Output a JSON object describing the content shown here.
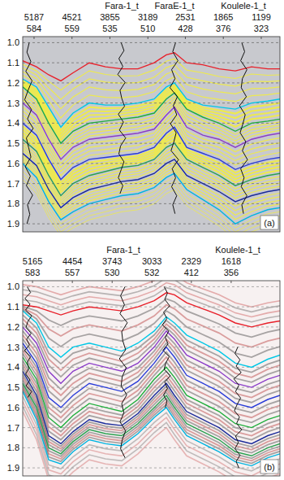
{
  "chart_data": [
    {
      "type": "line",
      "color": "#c8c9ce",
      "grid": true,
      "panel_label": "(a)",
      "xlim": [
        5386,
        871
      ],
      "xticks": [
        5187,
        4521,
        3855,
        3189,
        2531,
        1865,
        1199
      ],
      "cdp_labels": [
        584,
        559,
        535,
        510,
        428,
        376,
        323
      ],
      "ylim": [
        0.97,
        1.94
      ],
      "yticks": [
        {
          "value": 1,
          "label": "1.0"
        },
        1.1,
        1.2,
        1.3,
        1.4,
        1.5,
        1.6,
        1.7,
        1.8,
        1.9
      ],
      "x": [
        5386,
        5144,
        4930,
        4716,
        4503,
        4218,
        3933,
        3648,
        3363,
        3078,
        2865,
        2722,
        2508,
        2224,
        1939,
        1654,
        1369,
        1084,
        871
      ],
      "series": [
        {
          "color": "#e8202a",
          "values": [
            1.09,
            1.12,
            1.16,
            1.19,
            1.15,
            1.1,
            1.12,
            1.13,
            1.13,
            1.1,
            1.06,
            1.05,
            1.1,
            1.11,
            1.13,
            1.14,
            1.12,
            1.13,
            1.13
          ]
        },
        {
          "color": "#00c8e6",
          "values": [
            1.18,
            1.22,
            1.32,
            1.42,
            1.35,
            1.3,
            1.31,
            1.31,
            1.3,
            1.28,
            1.22,
            1.2,
            1.28,
            1.31,
            1.32,
            1.33,
            1.3,
            1.29,
            1.28
          ]
        },
        {
          "color": "#1fae3c",
          "values": [
            1.22,
            1.28,
            1.4,
            1.5,
            1.44,
            1.4,
            1.39,
            1.38,
            1.37,
            1.35,
            1.28,
            1.25,
            1.33,
            1.37,
            1.4,
            1.44,
            1.4,
            1.39,
            1.38
          ]
        },
        {
          "color": "#8a3cc8",
          "values": [
            1.3,
            1.36,
            1.48,
            1.58,
            1.52,
            1.48,
            1.47,
            1.46,
            1.45,
            1.43,
            1.36,
            1.32,
            1.42,
            1.46,
            1.48,
            1.52,
            1.48,
            1.46,
            1.45
          ]
        },
        {
          "color": "#2a3cd8",
          "values": [
            1.4,
            1.46,
            1.58,
            1.68,
            1.62,
            1.58,
            1.57,
            1.56,
            1.55,
            1.52,
            1.45,
            1.42,
            1.52,
            1.55,
            1.58,
            1.63,
            1.6,
            1.58,
            1.57
          ]
        },
        {
          "color": "#2aa050",
          "values": [
            1.48,
            1.54,
            1.66,
            1.76,
            1.7,
            1.66,
            1.64,
            1.62,
            1.61,
            1.58,
            1.52,
            1.5,
            1.58,
            1.62,
            1.66,
            1.71,
            1.68,
            1.66,
            1.65
          ]
        },
        {
          "color": "#1a2a9a",
          "values": [
            1.55,
            1.61,
            1.73,
            1.82,
            1.77,
            1.73,
            1.71,
            1.69,
            1.68,
            1.65,
            1.6,
            1.58,
            1.66,
            1.7,
            1.74,
            1.79,
            1.76,
            1.74,
            1.73
          ]
        },
        {
          "color": "#00b4e0",
          "values": [
            1.6,
            1.67,
            1.79,
            1.88,
            1.84,
            1.8,
            1.78,
            1.76,
            1.75,
            1.72,
            1.67,
            1.65,
            1.73,
            1.78,
            1.83,
            1.9,
            1.86,
            1.83,
            1.82
          ]
        }
      ],
      "wells": [
        {
          "name": null,
          "x": 5272,
          "top": 1.0,
          "bottom": 1.9,
          "log": [
            0,
            40,
            -30,
            60,
            -50,
            20,
            80,
            -40,
            30,
            -70,
            50,
            10,
            -30,
            70,
            -20,
            50,
            -60,
            30,
            -10,
            40
          ]
        },
        {
          "name": "Fara-1_t",
          "x": 3648,
          "top": 1.0,
          "bottom": 1.75,
          "log": [
            10,
            -40,
            50,
            -20,
            70,
            -60,
            30,
            0,
            -50,
            60,
            -30,
            40,
            -70,
            20,
            50,
            -40,
            10,
            60,
            -20,
            30
          ]
        },
        {
          "name": "FaraE-1_t",
          "x": 2722,
          "top": 1.0,
          "bottom": 1.85,
          "log": [
            -20,
            30,
            -60,
            50,
            -10,
            80,
            -50,
            20,
            -40,
            70,
            -30,
            10,
            60,
            -70,
            40,
            -20,
            50,
            -40,
            30,
            -10
          ]
        },
        {
          "name": "Koulele-1_t",
          "x": 1511,
          "top": 1.0,
          "bottom": 1.85,
          "log": [
            30,
            -20,
            50,
            -60,
            20,
            40,
            -50,
            70,
            -30,
            10,
            60,
            -40,
            20,
            -70,
            50,
            -10,
            40,
            -60,
            30,
            0
          ]
        }
      ]
    },
    {
      "type": "seismic",
      "color": "#f7f1f1",
      "grid": true,
      "panel_label": "(b)",
      "xlim": [
        5340,
        747
      ],
      "xticks": [
        5165,
        4454,
        3743,
        3033,
        2329,
        1618
      ],
      "cdp_labels": [
        583,
        557,
        530,
        532,
        412,
        356
      ],
      "ylim": [
        0.97,
        1.94
      ],
      "yticks": [
        {
          "value": 1,
          "label": "1.0"
        },
        1.1,
        1.2,
        1.3,
        1.4,
        1.5,
        1.6,
        1.7,
        1.8,
        1.9
      ],
      "x": [
        5340,
        5094,
        4876,
        4659,
        4442,
        4152,
        3862,
        3572,
        3282,
        2993,
        2775,
        2630,
        2413,
        2123,
        1834,
        1544,
        1254,
        964,
        747
      ],
      "series": [
        {
          "color": "#e8202a",
          "values": [
            1.09,
            1.1,
            1.12,
            1.14,
            1.12,
            1.1,
            1.11,
            1.12,
            1.1,
            1.07,
            1.03,
            1.04,
            1.08,
            1.11,
            1.14,
            1.18,
            1.2,
            1.18,
            1.17
          ]
        },
        {
          "color": "#00c8e6",
          "values": [
            1.12,
            1.18,
            1.3,
            1.35,
            1.3,
            1.28,
            1.3,
            1.32,
            1.28,
            1.22,
            1.15,
            1.18,
            1.24,
            1.28,
            1.32,
            1.38,
            1.4,
            1.36,
            1.34
          ]
        },
        {
          "color": "#8a3cc8",
          "values": [
            1.2,
            1.28,
            1.42,
            1.48,
            1.42,
            1.38,
            1.4,
            1.42,
            1.38,
            1.3,
            1.22,
            1.26,
            1.34,
            1.38,
            1.42,
            1.48,
            1.5,
            1.46,
            1.44
          ]
        },
        {
          "color": "#2a3cd8",
          "values": [
            1.28,
            1.38,
            1.55,
            1.6,
            1.54,
            1.48,
            1.5,
            1.52,
            1.47,
            1.38,
            1.3,
            1.35,
            1.44,
            1.48,
            1.52,
            1.58,
            1.6,
            1.56,
            1.54
          ]
        },
        {
          "color": "#1fae3c",
          "values": [
            1.35,
            1.46,
            1.65,
            1.7,
            1.64,
            1.58,
            1.6,
            1.62,
            1.56,
            1.46,
            1.4,
            1.45,
            1.54,
            1.58,
            1.62,
            1.68,
            1.7,
            1.66,
            1.64
          ]
        },
        {
          "color": "#1a2a9a",
          "values": [
            1.42,
            1.54,
            1.74,
            1.78,
            1.72,
            1.66,
            1.68,
            1.69,
            1.63,
            1.54,
            1.48,
            1.54,
            1.62,
            1.66,
            1.7,
            1.76,
            1.78,
            1.74,
            1.72
          ]
        },
        {
          "color": "#2aa050",
          "values": [
            1.48,
            1.6,
            1.8,
            1.83,
            1.77,
            1.71,
            1.73,
            1.74,
            1.68,
            1.6,
            1.54,
            1.6,
            1.68,
            1.72,
            1.76,
            1.82,
            1.84,
            1.8,
            1.78
          ]
        },
        {
          "color": "#00b4e0",
          "values": [
            1.52,
            1.66,
            1.86,
            1.88,
            1.82,
            1.76,
            1.78,
            1.79,
            1.73,
            1.65,
            1.6,
            1.66,
            1.74,
            1.78,
            1.82,
            1.87,
            1.89,
            1.85,
            1.83
          ]
        }
      ],
      "wells": [
        {
          "name": null,
          "x": 5240,
          "top": 1.0,
          "bottom": 1.55,
          "log": [
            20,
            -40,
            60,
            -30,
            50,
            -60,
            10,
            40,
            -50,
            30,
            -20,
            70,
            -40,
            20,
            -10,
            50,
            -30,
            40,
            -60,
            10
          ]
        },
        {
          "name": "Fara-1_t",
          "x": 3543,
          "top": 1.0,
          "bottom": 1.85,
          "log": [
            -30,
            50,
            -20,
            60,
            -70,
            30,
            10,
            -40,
            70,
            -50,
            20,
            40,
            -60,
            30,
            -10,
            60,
            -40,
            20,
            50,
            -30
          ]
        },
        {
          "name": null,
          "x": 2775,
          "top": 1.0,
          "bottom": 1.6,
          "log": [
            40,
            -20,
            30,
            -60,
            50,
            -10,
            70,
            -40,
            20,
            -30,
            60,
            -50,
            10,
            40,
            -70,
            30,
            -20,
            50,
            -10,
            20
          ]
        },
        {
          "name": "Koulele-1_t",
          "x": 1500,
          "top": 1.3,
          "bottom": 1.9,
          "log": [
            0,
            50,
            -40,
            30,
            -60,
            70,
            -20,
            40,
            -50,
            10,
            60,
            -30,
            20,
            -70,
            40,
            -10,
            50,
            -40,
            30,
            -20
          ]
        }
      ]
    }
  ]
}
